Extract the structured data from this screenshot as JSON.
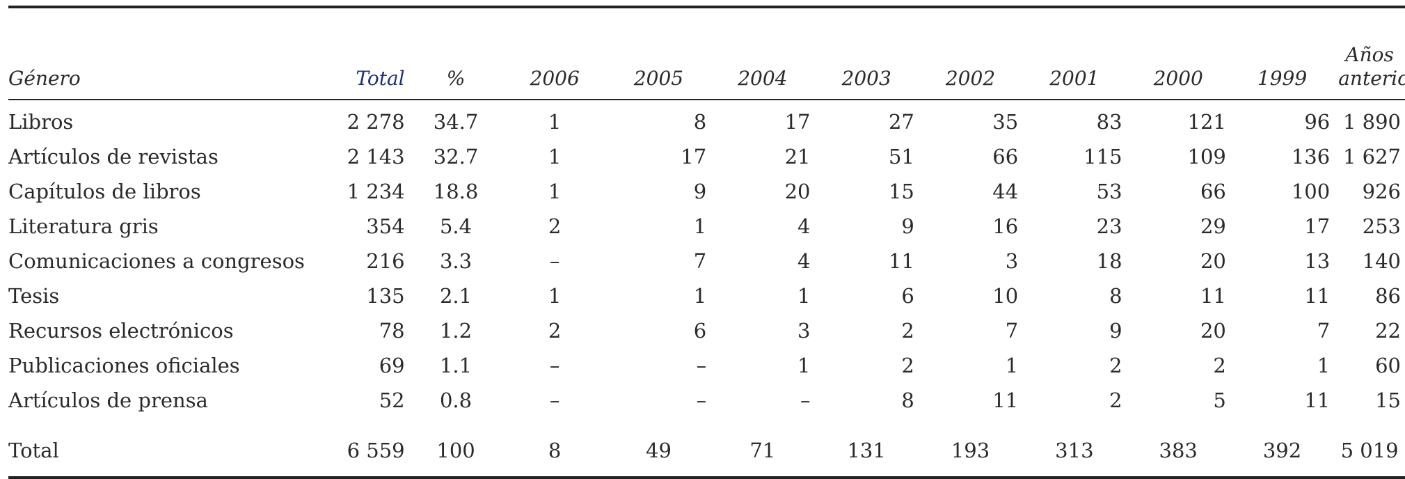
{
  "columns": {
    "genre": "Género",
    "total": "Total",
    "pct": "%",
    "years": [
      "2006",
      "2005",
      "2004",
      "2003",
      "2002",
      "2001",
      "2000",
      "1999"
    ],
    "earlier": [
      "Años",
      "anteriores"
    ]
  },
  "rows": [
    {
      "genre": "Libros",
      "total": "2 278",
      "pct": "34.7",
      "years": [
        "1",
        "8",
        "17",
        "27",
        "35",
        "83",
        "121",
        "96"
      ],
      "earlier": "1 890"
    },
    {
      "genre": "Artículos de revistas",
      "total": "2 143",
      "pct": "32.7",
      "years": [
        "1",
        "17",
        "21",
        "51",
        "66",
        "115",
        "109",
        "136"
      ],
      "earlier": "1 627"
    },
    {
      "genre": "Capítulos de libros",
      "total": "1 234",
      "pct": "18.8",
      "years": [
        "1",
        "9",
        "20",
        "15",
        "44",
        "53",
        "66",
        "100"
      ],
      "earlier": "926"
    },
    {
      "genre": "Literatura gris",
      "total": "354",
      "pct": "5.4",
      "years": [
        "2",
        "1",
        "4",
        "9",
        "16",
        "23",
        "29",
        "17"
      ],
      "earlier": "253"
    },
    {
      "genre": "Comunicaciones a congresos",
      "total": "216",
      "pct": "3.3",
      "years": [
        "–",
        "7",
        "4",
        "11",
        "3",
        "18",
        "20",
        "13"
      ],
      "earlier": "140"
    },
    {
      "genre": "Tesis",
      "total": "135",
      "pct": "2.1",
      "years": [
        "1",
        "1",
        "1",
        "6",
        "10",
        "8",
        "11",
        "11"
      ],
      "earlier": "86"
    },
    {
      "genre": "Recursos electrónicos",
      "total": "78",
      "pct": "1.2",
      "years": [
        "2",
        "6",
        "3",
        "2",
        "7",
        "9",
        "20",
        "7"
      ],
      "earlier": "22"
    },
    {
      "genre": "Publicaciones oficiales",
      "total": "69",
      "pct": "1.1",
      "years": [
        "–",
        "–",
        "1",
        "2",
        "1",
        "2",
        "2",
        "1"
      ],
      "earlier": "60"
    },
    {
      "genre": "Artículos de prensa",
      "total": "52",
      "pct": "0.8",
      "years": [
        "–",
        "–",
        "–",
        "8",
        "11",
        "2",
        "5",
        "11"
      ],
      "earlier": "15"
    }
  ],
  "totals": {
    "label": "Total",
    "total": "6 559",
    "pct": "100",
    "years": [
      "8",
      "49",
      "71",
      "131",
      "193",
      "313",
      "383",
      "392"
    ],
    "earlier": "5 019"
  }
}
